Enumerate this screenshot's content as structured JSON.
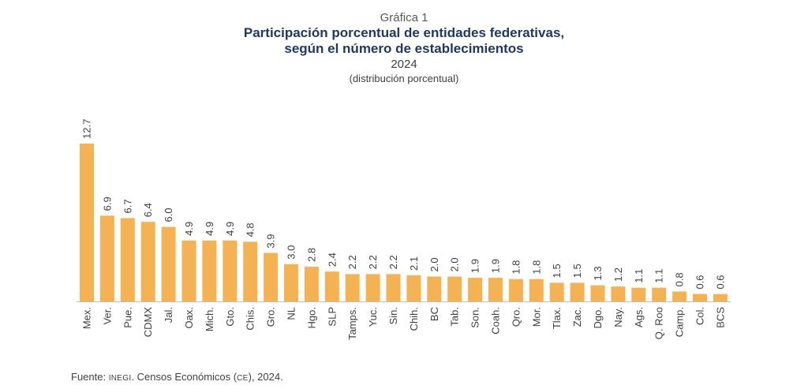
{
  "header": {
    "kicker": "Gráfica 1",
    "title_line1": "Participación porcentual de entidades federativas,",
    "title_line2": "según el número de establecimientos",
    "year": "2024",
    "subtitle": "(distribución porcentual)"
  },
  "source": {
    "prefix": "Fuente: ",
    "org": "INEGI",
    "middle": ". Censos Económicos (",
    "abbr": "CE",
    "suffix": "), 2024."
  },
  "colors": {
    "bar": "#f5b252",
    "axis": "#bfbfbf",
    "text": "#404040"
  },
  "chart_data": {
    "type": "bar",
    "categories": [
      "Mex.",
      "Ver.",
      "Pue.",
      "CDMX",
      "Jal.",
      "Oax.",
      "Mich.",
      "Gto.",
      "Chis.",
      "Gro.",
      "NL",
      "Hgo.",
      "SLP",
      "Tamps.",
      "Yuc.",
      "Sin.",
      "Chih.",
      "BC",
      "Tab.",
      "Son.",
      "Coah.",
      "Qro.",
      "Mor.",
      "Tlax.",
      "Zac.",
      "Dgo.",
      "Nay.",
      "Ags.",
      "Q. Roo",
      "Camp.",
      "Col.",
      "BCS"
    ],
    "values": [
      12.7,
      6.9,
      6.7,
      6.4,
      6.0,
      4.9,
      4.9,
      4.9,
      4.8,
      3.9,
      3.0,
      2.8,
      2.4,
      2.2,
      2.2,
      2.2,
      2.1,
      2.0,
      2.0,
      1.9,
      1.9,
      1.8,
      1.8,
      1.5,
      1.5,
      1.3,
      1.2,
      1.1,
      1.1,
      0.8,
      0.6,
      0.6
    ],
    "value_labels": [
      "12.7",
      "6.9",
      "6.7",
      "6.4",
      "6.0",
      "4.9",
      "4.9",
      "4.9",
      "4.8",
      "3.9",
      "3.0",
      "2.8",
      "2.4",
      "2.2",
      "2.2",
      "2.2",
      "2.1",
      "2.0",
      "2.0",
      "1.9",
      "1.9",
      "1.8",
      "1.8",
      "1.5",
      "1.5",
      "1.3",
      "1.2",
      "1.1",
      "1.1",
      "0.8",
      "0.6",
      "0.6"
    ],
    "title": "Participación porcentual de entidades federativas, según el número de establecimientos",
    "xlabel": "",
    "ylabel": "",
    "ylim": [
      0,
      12.7
    ],
    "grid": false,
    "legend": "none"
  }
}
